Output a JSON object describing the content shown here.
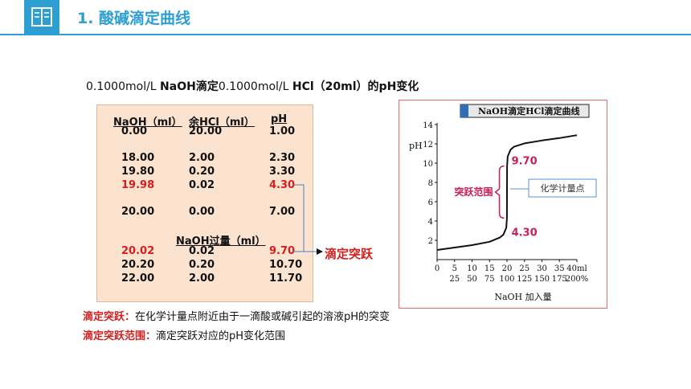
{
  "header": {
    "title": "1. 酸碱滴定曲线",
    "icon": "book-icon",
    "accent": "#2e9fd3"
  },
  "subtitle": {
    "part1": "0.1000mol/L ",
    "part2": "NaOH滴定",
    "part3": "0.1000mol/L ",
    "part4": "HCl（20ml）的pH变化"
  },
  "table": {
    "headers": [
      "NaOH（ml）",
      "余HCl（ml）",
      "pH"
    ],
    "rows": [
      {
        "naoh": "0.00",
        "hcl": "20.00",
        "ph": "1.00",
        "highlight": false
      },
      {
        "naoh": "18.00",
        "hcl": "2.00",
        "ph": "2.30",
        "highlight": false
      },
      {
        "naoh": "19.80",
        "hcl": "0.20",
        "ph": "3.30",
        "highlight": false
      },
      {
        "naoh": "19.98",
        "hcl": "0.02",
        "ph": "4.30",
        "highlight": true
      },
      {
        "naoh": "20.00",
        "hcl": "0.00",
        "ph": "7.00",
        "highlight": false
      }
    ],
    "excess_header": "NaOH过量（ml）",
    "excess_rows": [
      {
        "naoh": "20.02",
        "hcl": "0.02",
        "ph": "9.70",
        "highlight": true
      },
      {
        "naoh": "20.20",
        "hcl": "0.20",
        "ph": "10.70",
        "highlight": false
      },
      {
        "naoh": "22.00",
        "hcl": "2.00",
        "ph": "11.70",
        "highlight": false
      }
    ],
    "jump_label": "滴定突跃"
  },
  "chart_data": {
    "type": "line",
    "title": "NaOH滴定HCl滴定曲线",
    "xlabel": "NaOH 加入量",
    "ylabel": "pH",
    "xlim": [
      0,
      40
    ],
    "ylim": [
      0,
      14
    ],
    "x_ticks": [
      "0",
      "5",
      "10",
      "15",
      "20",
      "25",
      "30",
      "35",
      "40ml"
    ],
    "x_ticks_percent": [
      "25",
      "50",
      "75",
      "100",
      "125",
      "150",
      "175",
      "200%"
    ],
    "y_ticks": [
      "2",
      "4",
      "6",
      "8",
      "10",
      "12",
      "14"
    ],
    "series": [
      {
        "x": [
          0,
          5,
          10,
          15,
          18,
          19,
          19.8,
          19.98,
          20,
          20.02,
          20.2,
          21,
          22,
          25,
          30,
          35,
          40
        ],
        "y": [
          1.0,
          1.25,
          1.5,
          1.85,
          2.3,
          2.6,
          3.3,
          4.3,
          7.0,
          9.7,
          10.7,
          11.4,
          11.7,
          12.05,
          12.35,
          12.6,
          12.9
        ]
      }
    ],
    "annotations": {
      "range_label": "突跃范围",
      "upper": "9.70",
      "lower": "4.30",
      "equivalence": "化学计量点"
    },
    "colors": {
      "curve": "#111111",
      "annotation": "#c81e5a",
      "frame": "#e07070"
    }
  },
  "definitions": [
    {
      "key": "滴定突跃：",
      "text": "在化学计量点附近由于一滴酸或碱引起的溶液pH的突变"
    },
    {
      "key": "滴定突跃范围：",
      "text": "滴定突跃对应的pH变化范围"
    }
  ]
}
